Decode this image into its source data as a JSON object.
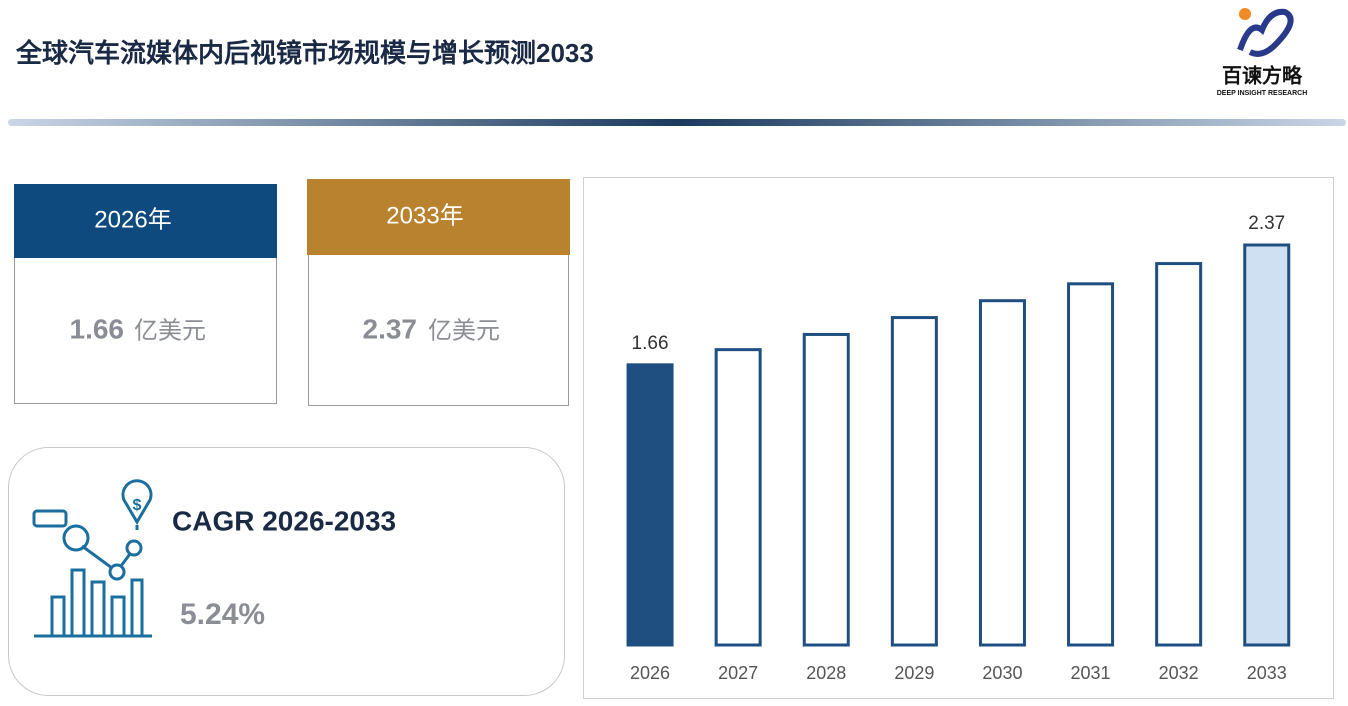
{
  "header": {
    "title": "全球汽车流媒体内后视镜市场规模与增长预测2033",
    "logo_name": "百谏方略",
    "logo_tagline": "DEEP INSIGHT RESEARCH"
  },
  "cards": [
    {
      "year": "2026年",
      "value": "1.66",
      "unit": "亿美元"
    },
    {
      "year": "2033年",
      "value": "2.37",
      "unit": "亿美元"
    }
  ],
  "cagr": {
    "label": "CAGR 2026-2033",
    "value": "5.24%"
  },
  "chart_data": {
    "type": "bar",
    "categories": [
      "2026",
      "2027",
      "2028",
      "2029",
      "2030",
      "2031",
      "2032",
      "2033"
    ],
    "values": [
      1.66,
      1.75,
      1.84,
      1.94,
      2.04,
      2.14,
      2.26,
      2.37
    ],
    "value_labels": [
      "1.66",
      null,
      null,
      null,
      null,
      null,
      null,
      "2.37"
    ],
    "fills": [
      "#1f4e80",
      "#ffffff",
      "#ffffff",
      "#ffffff",
      "#ffffff",
      "#ffffff",
      "#ffffff",
      "#cfe0f3"
    ],
    "color": "#1f4e80"
  }
}
